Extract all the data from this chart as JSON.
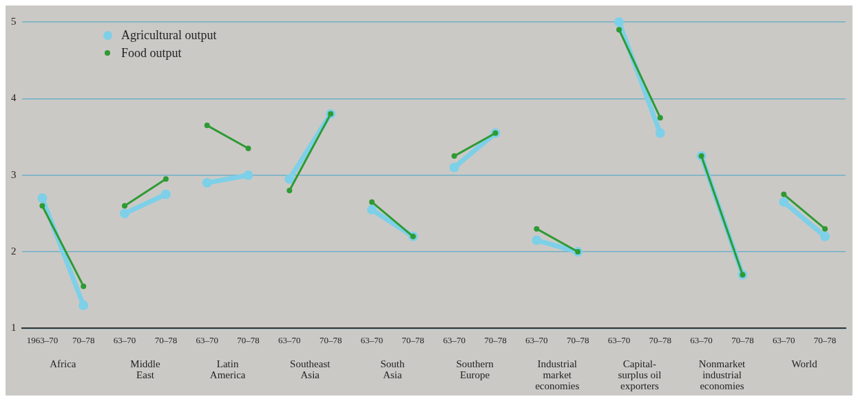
{
  "chart_data": {
    "type": "line",
    "categories": [
      "1963–70",
      "70–78",
      "63–70",
      "70–78",
      "63–70",
      "70–78",
      "63–70",
      "70–78",
      "63–70",
      "70–78",
      "63–70",
      "70–78",
      "63–70",
      "70–78",
      "63–70",
      "70–78",
      "63–70",
      "70–78",
      "63–70",
      "70–78"
    ],
    "series": [
      {
        "name": "Agricultural output",
        "color": "#7dd0e8",
        "values": [
          2.7,
          1.3,
          2.5,
          2.75,
          2.9,
          3.0,
          2.95,
          3.8,
          2.55,
          2.2,
          3.1,
          3.55,
          2.15,
          2.0,
          5.0,
          3.55,
          3.25,
          1.7,
          2.65,
          2.2
        ]
      },
      {
        "name": "Food output",
        "color": "#2f9a33",
        "values": [
          2.6,
          1.55,
          2.6,
          2.95,
          3.65,
          3.35,
          2.8,
          3.8,
          2.65,
          2.2,
          3.25,
          3.55,
          2.3,
          2.0,
          4.9,
          3.75,
          3.25,
          1.7,
          2.75,
          2.3
        ]
      }
    ],
    "annotations": [
      "Africa",
      "Middle\nEast",
      "Latin\nAmerica",
      "Southeast\nAsia",
      "South\nAsia",
      "Southern\nEurope",
      "Industrial\nmarket\neconomies",
      "Capital-\nsurplus oil\nexporters",
      "Nonmarket\nindustrial\neconomies",
      "World"
    ],
    "ylim": [
      1,
      5
    ],
    "yticks": [
      1,
      2,
      3,
      4,
      5
    ],
    "grid": "y",
    "legend": "top left",
    "marker": "circle",
    "line_style": "solid"
  }
}
